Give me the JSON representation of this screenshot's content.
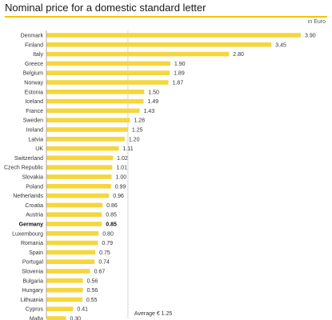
{
  "title": "Nominal price for a domestic standard letter",
  "unit": "in Euro",
  "colors": {
    "bar": "#f5d63d",
    "accent": "#f2c500",
    "axis": "#9a9a9a",
    "avg": "#cccccc"
  },
  "chart_data": {
    "type": "bar",
    "orientation": "horizontal",
    "categories": [
      "Denmark",
      "Finland",
      "Italy",
      "Greece",
      "Belgium",
      "Norway",
      "Estonia",
      "Iceland",
      "France",
      "Sweden",
      "Ireland",
      "Latvia",
      "UK",
      "Switzerland",
      "Czech Republic",
      "Slovakia",
      "Poland",
      "Netherlands",
      "Croatia",
      "Austria",
      "Germany",
      "Luxembourg",
      "Romania",
      "Spain",
      "Portugal",
      "Slovenia",
      "Bulgaria",
      "Hungary",
      "Lithuania",
      "Cyprus",
      "Malta"
    ],
    "values": [
      3.9,
      3.45,
      2.8,
      1.9,
      1.89,
      1.87,
      1.5,
      1.49,
      1.43,
      1.28,
      1.25,
      1.2,
      1.11,
      1.02,
      1.01,
      1.0,
      0.99,
      0.96,
      0.86,
      0.85,
      0.85,
      0.8,
      0.79,
      0.75,
      0.74,
      0.67,
      0.56,
      0.56,
      0.55,
      0.41,
      0.3
    ],
    "value_labels": [
      "3.90",
      "3.45",
      "2.80",
      "1.90",
      "1.89",
      "1.87",
      "1.50",
      "1.49",
      "1.43",
      "1.28",
      "1.25",
      "1.20",
      "1.11",
      "1.02",
      "1.01",
      "1.00",
      "0.99",
      "0.96",
      "0.86",
      "0.85",
      "0.85",
      "0.80",
      "0.79",
      "0.75",
      "0.74",
      "0.67",
      "0.56",
      "0.56",
      "0.55",
      "0.41",
      "0.30"
    ],
    "highlight": "Germany",
    "average": 1.25,
    "average_label": "Average € 1.25",
    "xlim": [
      0,
      3.9
    ]
  }
}
